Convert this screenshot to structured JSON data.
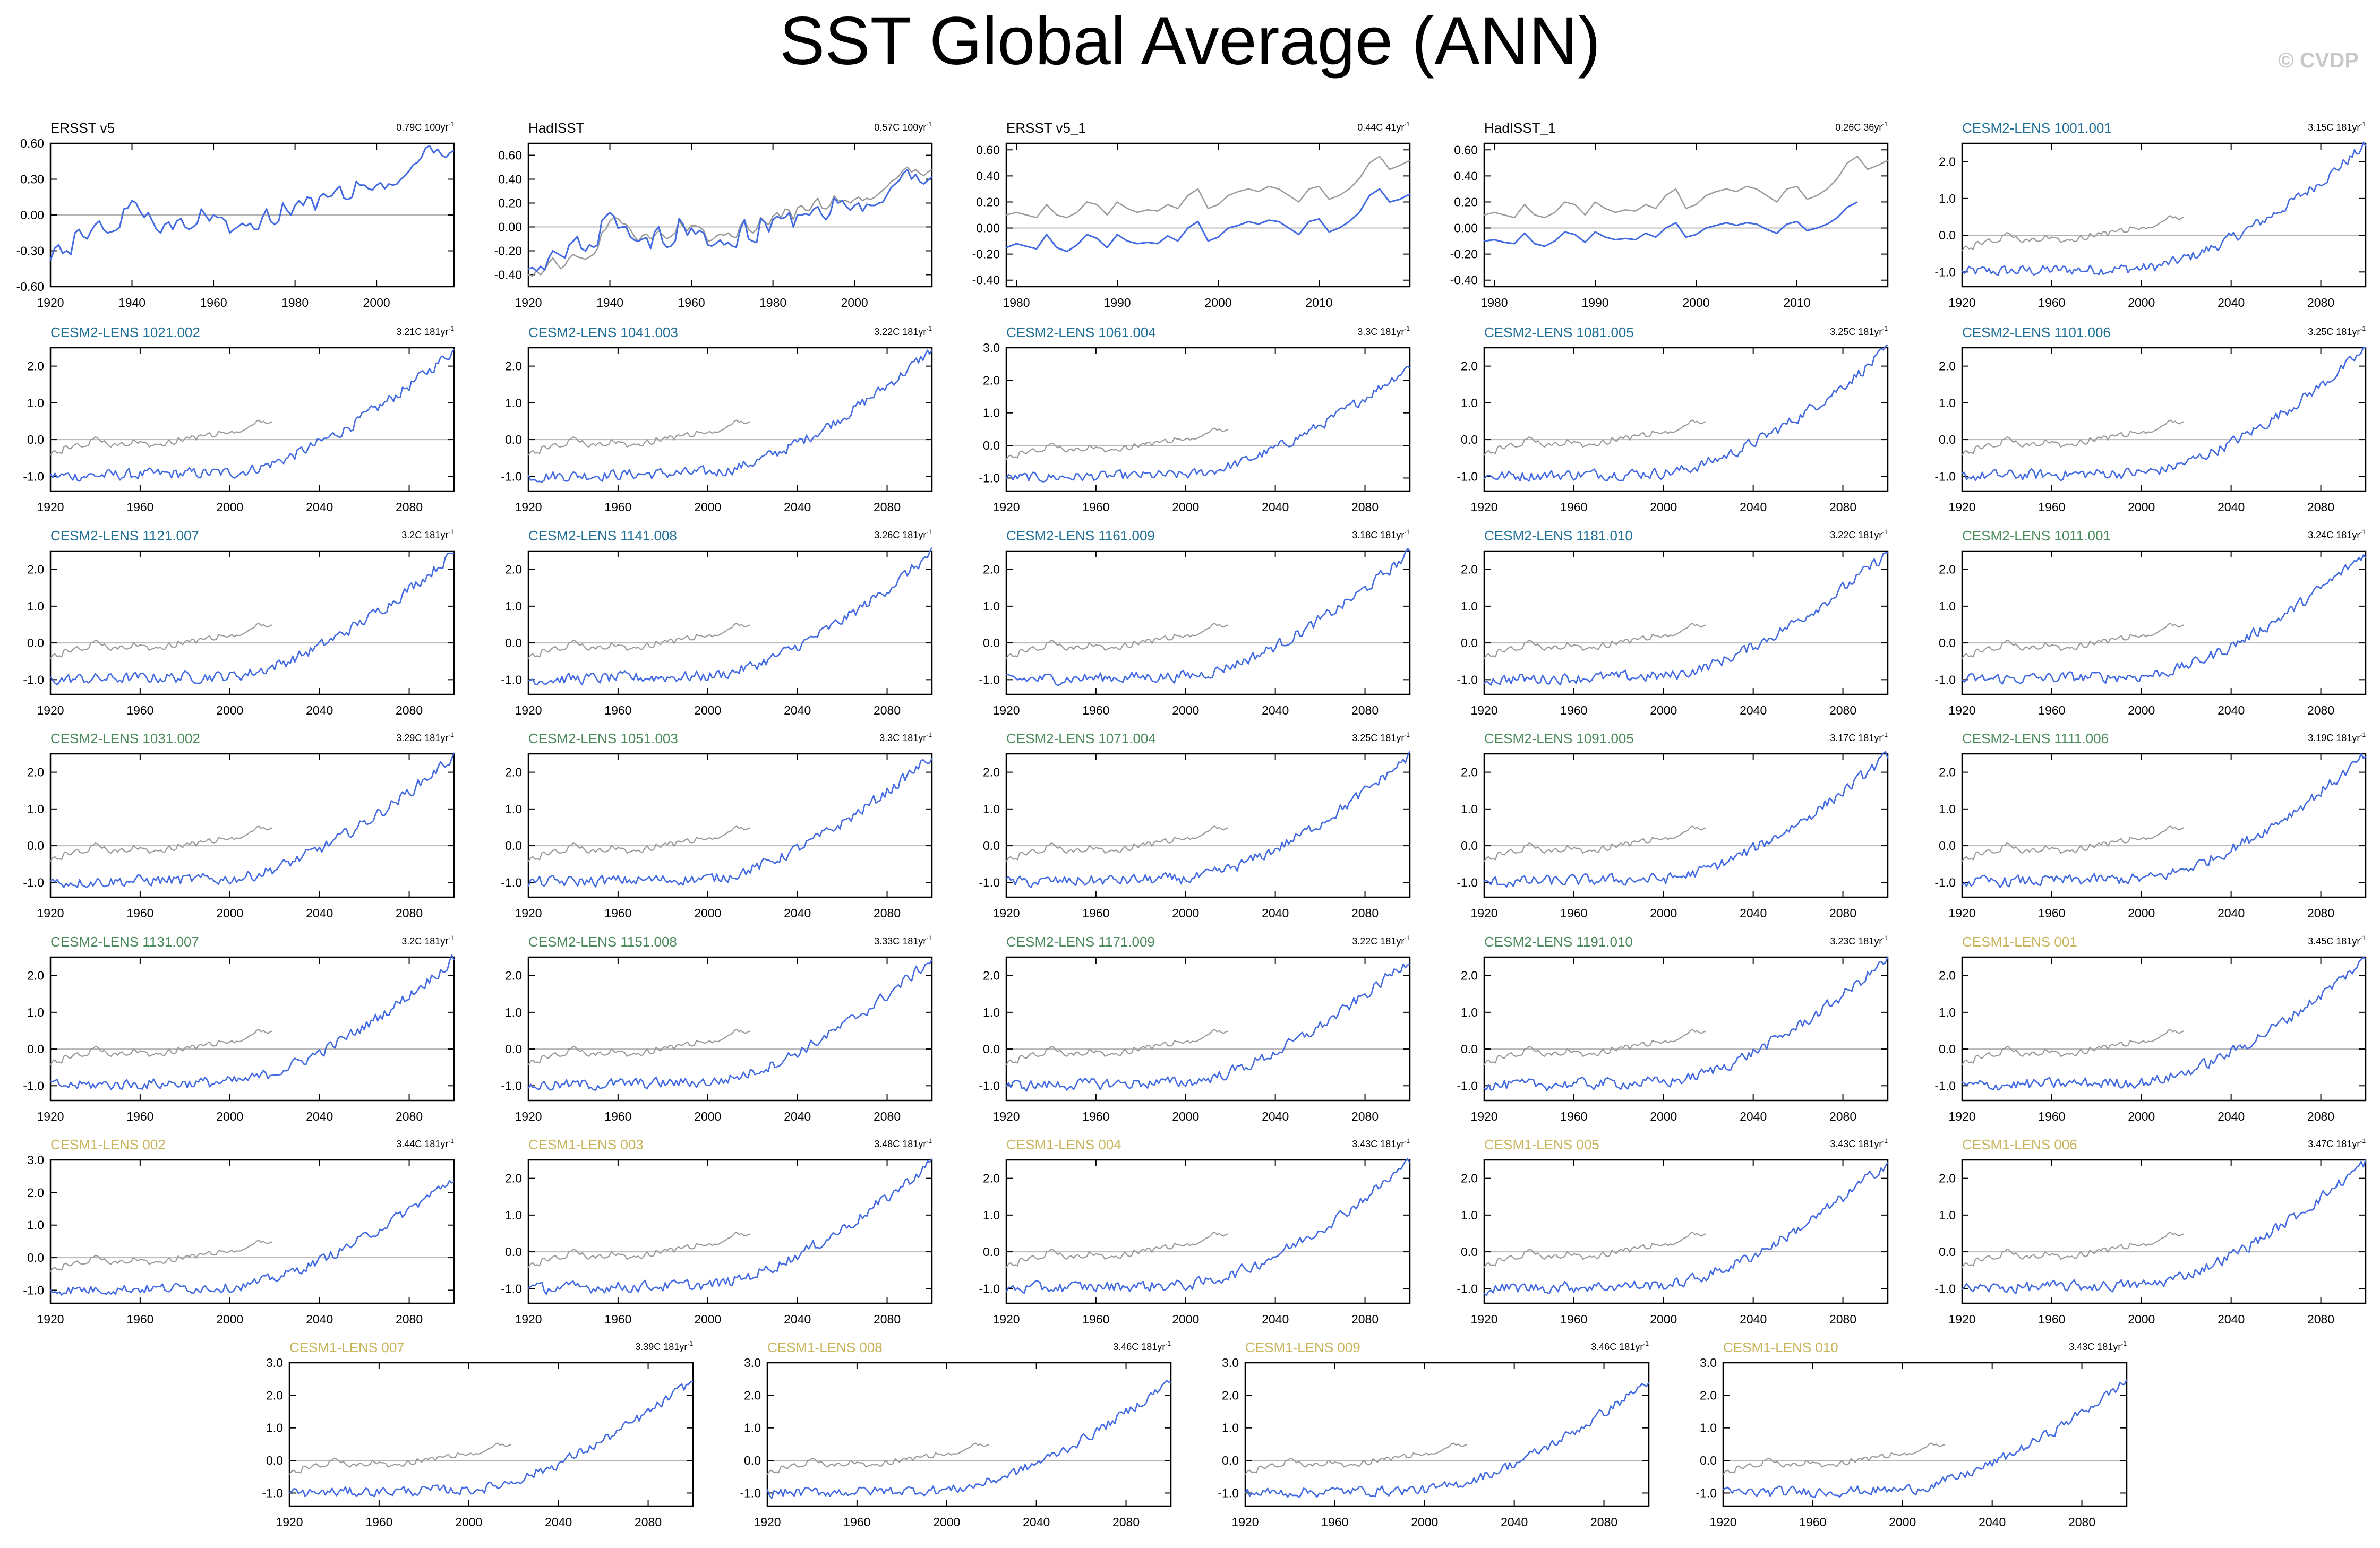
{
  "page": {
    "title": "SST Global Average (ANN)",
    "watermark": "© CVDP"
  },
  "colors": {
    "model": "#4169e1",
    "obs_ref": "#999999",
    "obs": "#000000",
    "cesm2_blue": "#1e6e96",
    "cesm2_green": "#4a8a5a",
    "cesm1": "#c8b45a",
    "zero_line": "#b4b4b4"
  },
  "chart_data": [
    {
      "type": "line",
      "title": "ERSST v5",
      "trend": "0.79C 100yr",
      "trend_unit_sup": "-1",
      "x_range": [
        1920,
        2019
      ],
      "xticks": [
        1920,
        1940,
        1960,
        1980,
        2000
      ],
      "ylim": [
        -0.6,
        0.6
      ],
      "yticks": [
        "0.60",
        "0.30",
        "0.00",
        "-0.30",
        "-0.60"
      ],
      "series": [
        {
          "values": [
            -0.38,
            -0.28,
            -0.25,
            -0.32,
            -0.3,
            -0.33,
            -0.15,
            -0.12,
            -0.18,
            -0.2,
            -0.13,
            -0.08,
            -0.05,
            -0.12,
            -0.15,
            -0.14,
            -0.13,
            -0.1,
            0.05,
            0.06,
            0.12,
            0.1,
            0.03,
            -0.02,
            0.02,
            -0.05,
            -0.12,
            -0.15,
            -0.08,
            -0.06,
            -0.12,
            -0.05,
            -0.03,
            -0.1,
            -0.12,
            -0.1,
            -0.07,
            0.05,
            0.0,
            -0.05,
            0.0,
            -0.02,
            -0.02,
            -0.05,
            -0.15,
            -0.12,
            -0.1,
            -0.07,
            -0.09,
            -0.07,
            -0.12,
            -0.12,
            -0.02,
            0.05,
            -0.05,
            -0.08,
            -0.05,
            0.1,
            0.04,
            0.0,
            0.08,
            0.12,
            0.08,
            0.15,
            0.14,
            0.04,
            0.15,
            0.18,
            0.15,
            0.16,
            0.21,
            0.24,
            0.14,
            0.13,
            0.15,
            0.28,
            0.25,
            0.25,
            0.22,
            0.21,
            0.25,
            0.27,
            0.22,
            0.26,
            0.25,
            0.26,
            0.3,
            0.33,
            0.37,
            0.42,
            0.44,
            0.48,
            0.56,
            0.58,
            0.52,
            0.55,
            0.5,
            0.48,
            0.52,
            0.54
          ]
        }
      ]
    },
    {
      "type": "line",
      "title": "HadISST",
      "trend": "0.57C 100yr",
      "trend_unit_sup": "-1",
      "x_range": [
        1920,
        2019
      ],
      "xticks": [
        1920,
        1940,
        1960,
        1980,
        2000
      ],
      "ylim": [
        -0.5,
        0.7
      ],
      "yticks": [
        "0.60",
        "0.40",
        "0.20",
        "0.00",
        "-0.20",
        "-0.40"
      ],
      "series": [
        {
          "values": [
            -0.4,
            -0.41,
            -0.37,
            -0.4,
            -0.36,
            -0.3,
            -0.26,
            -0.31,
            -0.35,
            -0.32,
            -0.26,
            -0.23,
            -0.25,
            -0.26,
            -0.27,
            -0.25,
            -0.23,
            -0.18,
            -0.05,
            -0.02,
            0.05,
            0.08,
            0.07,
            0.03,
            0.02,
            -0.02,
            -0.08,
            -0.12,
            -0.07,
            -0.06,
            -0.1,
            -0.07,
            -0.03,
            -0.07,
            -0.1,
            -0.08,
            -0.05,
            0.05,
            0.0,
            -0.03,
            0.01,
            0.01,
            0.0,
            -0.03,
            -0.12,
            -0.11,
            -0.08,
            -0.06,
            -0.07,
            -0.05,
            -0.08,
            -0.09,
            0.01,
            0.06,
            -0.02,
            -0.05,
            -0.02,
            0.08,
            0.04,
            0.02,
            0.09,
            0.12,
            0.08,
            0.15,
            0.14,
            0.06,
            0.16,
            0.18,
            0.14,
            0.14,
            0.2,
            0.24,
            0.16,
            0.15,
            0.18,
            0.26,
            0.22,
            0.22,
            0.22,
            0.2,
            0.23,
            0.25,
            0.22,
            0.24,
            0.23,
            0.25,
            0.28,
            0.31,
            0.34,
            0.38,
            0.4,
            0.43,
            0.48,
            0.5,
            0.46,
            0.48,
            0.45,
            0.43,
            0.46,
            0.48
          ]
        },
        {
          "values": [
            -0.35,
            -0.34,
            -0.37,
            -0.33,
            -0.36,
            -0.26,
            -0.2,
            -0.22,
            -0.24,
            -0.26,
            -0.15,
            -0.12,
            -0.08,
            -0.18,
            -0.2,
            -0.15,
            -0.17,
            -0.15,
            0.05,
            0.09,
            0.12,
            0.09,
            -0.01,
            0.0,
            0.0,
            -0.08,
            -0.11,
            -0.12,
            -0.1,
            -0.09,
            -0.18,
            -0.04,
            0.0,
            -0.13,
            -0.17,
            -0.16,
            -0.12,
            0.07,
            0.02,
            -0.07,
            -0.01,
            -0.06,
            -0.03,
            -0.05,
            -0.15,
            -0.16,
            -0.14,
            -0.11,
            -0.15,
            -0.13,
            -0.16,
            -0.17,
            -0.02,
            0.06,
            -0.1,
            -0.12,
            -0.13,
            0.07,
            0.04,
            -0.04,
            0.06,
            0.09,
            0.07,
            0.08,
            0.12,
            0.0,
            0.1,
            0.1,
            0.11,
            0.1,
            0.15,
            0.17,
            0.1,
            0.06,
            0.11,
            0.24,
            0.2,
            0.22,
            0.17,
            0.14,
            0.18,
            0.2,
            0.13,
            0.19,
            0.18,
            0.18,
            0.2,
            0.21,
            0.27,
            0.33,
            0.36,
            0.39,
            0.45,
            0.48,
            0.4,
            0.44,
            0.38,
            0.36,
            0.39,
            0.42
          ]
        }
      ]
    },
    {
      "type": "line",
      "title": "ERSST v5_1",
      "trend": "0.44C 41yr",
      "trend_unit_sup": "-1",
      "x_range": [
        1979,
        2019
      ],
      "xticks": [
        1980,
        1990,
        2000,
        2010
      ],
      "ylim": [
        -0.45,
        0.65
      ],
      "yticks": [
        "0.60",
        "0.40",
        "0.20",
        "0.00",
        "-0.20",
        "-0.40"
      ],
      "series": [
        {
          "values": [
            0.1,
            0.12,
            0.1,
            0.08,
            0.18,
            0.1,
            0.08,
            0.12,
            0.2,
            0.18,
            0.1,
            0.2,
            0.15,
            0.12,
            0.14,
            0.13,
            0.18,
            0.15,
            0.25,
            0.3,
            0.15,
            0.18,
            0.25,
            0.28,
            0.3,
            0.28,
            0.32,
            0.3,
            0.25,
            0.2,
            0.3,
            0.32,
            0.22,
            0.25,
            0.3,
            0.38,
            0.5,
            0.55,
            0.45,
            0.48,
            0.52
          ]
        },
        {
          "values": [
            -0.15,
            -0.12,
            -0.14,
            -0.16,
            -0.05,
            -0.15,
            -0.18,
            -0.13,
            -0.05,
            -0.08,
            -0.15,
            -0.05,
            -0.1,
            -0.12,
            -0.11,
            -0.12,
            -0.06,
            -0.1,
            0.0,
            0.05,
            -0.1,
            -0.07,
            0.0,
            0.02,
            0.05,
            0.03,
            0.06,
            0.05,
            0.0,
            -0.05,
            0.05,
            0.07,
            -0.03,
            0.0,
            0.05,
            0.12,
            0.25,
            0.3,
            0.2,
            0.22,
            0.26
          ]
        }
      ]
    },
    {
      "type": "line",
      "title": "HadISST_1",
      "trend": "0.26C 36yr",
      "trend_unit_sup": "-1",
      "x_range": [
        1979,
        2019
      ],
      "xticks": [
        1980,
        1990,
        2000,
        2010
      ],
      "ylim": [
        -0.45,
        0.65
      ],
      "yticks": [
        "0.60",
        "0.40",
        "0.20",
        "0.00",
        "-0.20",
        "-0.40"
      ],
      "series": [
        {
          "values": [
            0.1,
            0.12,
            0.1,
            0.08,
            0.18,
            0.1,
            0.08,
            0.12,
            0.2,
            0.18,
            0.1,
            0.2,
            0.15,
            0.12,
            0.14,
            0.13,
            0.18,
            0.15,
            0.25,
            0.3,
            0.15,
            0.18,
            0.25,
            0.28,
            0.3,
            0.28,
            0.32,
            0.3,
            0.25,
            0.2,
            0.3,
            0.32,
            0.22,
            0.25,
            0.3,
            0.38,
            0.5,
            0.55,
            0.45,
            0.48,
            0.52
          ]
        },
        {
          "values": [
            -0.1,
            -0.09,
            -0.11,
            -0.12,
            -0.04,
            -0.12,
            -0.14,
            -0.1,
            -0.03,
            -0.05,
            -0.11,
            -0.03,
            -0.07,
            -0.09,
            -0.08,
            -0.09,
            -0.04,
            -0.07,
            0.0,
            0.04,
            -0.07,
            -0.05,
            0.0,
            0.02,
            0.04,
            0.02,
            0.04,
            0.03,
            -0.01,
            -0.04,
            0.03,
            0.05,
            -0.02,
            0.0,
            0.03,
            0.08,
            0.16,
            0.2
          ]
        }
      ]
    },
    {
      "type": "line",
      "title": "CESM2-LENS 1001.001",
      "trend": "3.15C 181yr",
      "trend_unit_sup": "-1"
    },
    {
      "type": "line",
      "title": "CESM2-LENS 1021.002",
      "trend": "3.21C 181yr",
      "trend_unit_sup": "-1"
    },
    {
      "type": "line",
      "title": "CESM2-LENS 1041.003",
      "trend": "3.22C 181yr",
      "trend_unit_sup": "-1"
    },
    {
      "type": "line",
      "title": "CESM2-LENS 1061.004",
      "trend": "3.3C 181yr",
      "trend_unit_sup": "-1"
    },
    {
      "type": "line",
      "title": "CESM2-LENS 1081.005",
      "trend": "3.25C 181yr",
      "trend_unit_sup": "-1"
    },
    {
      "type": "line",
      "title": "CESM2-LENS 1101.006",
      "trend": "3.25C 181yr",
      "trend_unit_sup": "-1"
    },
    {
      "type": "line",
      "title": "CESM2-LENS 1121.007",
      "trend": "3.2C 181yr",
      "trend_unit_sup": "-1"
    },
    {
      "type": "line",
      "title": "CESM2-LENS 1141.008",
      "trend": "3.26C 181yr",
      "trend_unit_sup": "-1"
    },
    {
      "type": "line",
      "title": "CESM2-LENS 1161.009",
      "trend": "3.18C 181yr",
      "trend_unit_sup": "-1"
    },
    {
      "type": "line",
      "title": "CESM2-LENS 1181.010",
      "trend": "3.22C 181yr",
      "trend_unit_sup": "-1"
    },
    {
      "type": "line",
      "title": "CESM2-LENS 1011.001",
      "trend": "3.24C 181yr",
      "trend_unit_sup": "-1"
    },
    {
      "type": "line",
      "title": "CESM2-LENS 1031.002",
      "trend": "3.29C 181yr",
      "trend_unit_sup": "-1"
    },
    {
      "type": "line",
      "title": "CESM2-LENS 1051.003",
      "trend": "3.3C 181yr",
      "trend_unit_sup": "-1"
    },
    {
      "type": "line",
      "title": "CESM2-LENS 1071.004",
      "trend": "3.25C 181yr",
      "trend_unit_sup": "-1"
    },
    {
      "type": "line",
      "title": "CESM2-LENS 1091.005",
      "trend": "3.17C 181yr",
      "trend_unit_sup": "-1"
    },
    {
      "type": "line",
      "title": "CESM2-LENS 1111.006",
      "trend": "3.19C 181yr",
      "trend_unit_sup": "-1"
    },
    {
      "type": "line",
      "title": "CESM2-LENS 1131.007",
      "trend": "3.2C 181yr",
      "trend_unit_sup": "-1"
    },
    {
      "type": "line",
      "title": "CESM2-LENS 1151.008",
      "trend": "3.33C 181yr",
      "trend_unit_sup": "-1"
    },
    {
      "type": "line",
      "title": "CESM2-LENS 1171.009",
      "trend": "3.22C 181yr",
      "trend_unit_sup": "-1"
    },
    {
      "type": "line",
      "title": "CESM2-LENS 1191.010",
      "trend": "3.23C 181yr",
      "trend_unit_sup": "-1"
    },
    {
      "type": "line",
      "title": "CESM1-LENS 001",
      "trend": "3.45C 181yr",
      "trend_unit_sup": "-1"
    },
    {
      "type": "line",
      "title": "CESM1-LENS 002",
      "trend": "3.44C 181yr",
      "trend_unit_sup": "-1"
    },
    {
      "type": "line",
      "title": "CESM1-LENS 003",
      "trend": "3.48C 181yr",
      "trend_unit_sup": "-1"
    },
    {
      "type": "line",
      "title": "CESM1-LENS 004",
      "trend": "3.43C 181yr",
      "trend_unit_sup": "-1"
    },
    {
      "type": "line",
      "title": "CESM1-LENS 005",
      "trend": "3.43C 181yr",
      "trend_unit_sup": "-1"
    },
    {
      "type": "line",
      "title": "CESM1-LENS 006",
      "trend": "3.47C 181yr",
      "trend_unit_sup": "-1"
    },
    {
      "type": "line",
      "title": "CESM1-LENS 007",
      "trend": "3.39C 181yr",
      "trend_unit_sup": "-1"
    },
    {
      "type": "line",
      "title": "CESM1-LENS 008",
      "trend": "3.46C 181yr",
      "trend_unit_sup": "-1"
    },
    {
      "type": "line",
      "title": "CESM1-LENS 009",
      "trend": "3.46C 181yr",
      "trend_unit_sup": "-1"
    },
    {
      "type": "line",
      "title": "CESM1-LENS 010",
      "trend": "3.43C 181yr",
      "trend_unit_sup": "-1"
    }
  ],
  "model_axes": {
    "x_range": [
      1920,
      2100
    ],
    "xticks": [
      1920,
      1960,
      2000,
      2040,
      2080
    ],
    "ylim_2": [
      -1.4,
      2.5
    ],
    "yticks_2": [
      "2.0",
      "1.0",
      "0.0",
      "-1.0"
    ],
    "ylim_3": [
      -1.4,
      3.0
    ],
    "yticks_3": [
      "3.0",
      "2.0",
      "1.0",
      "0.0",
      "-1.0"
    ]
  }
}
